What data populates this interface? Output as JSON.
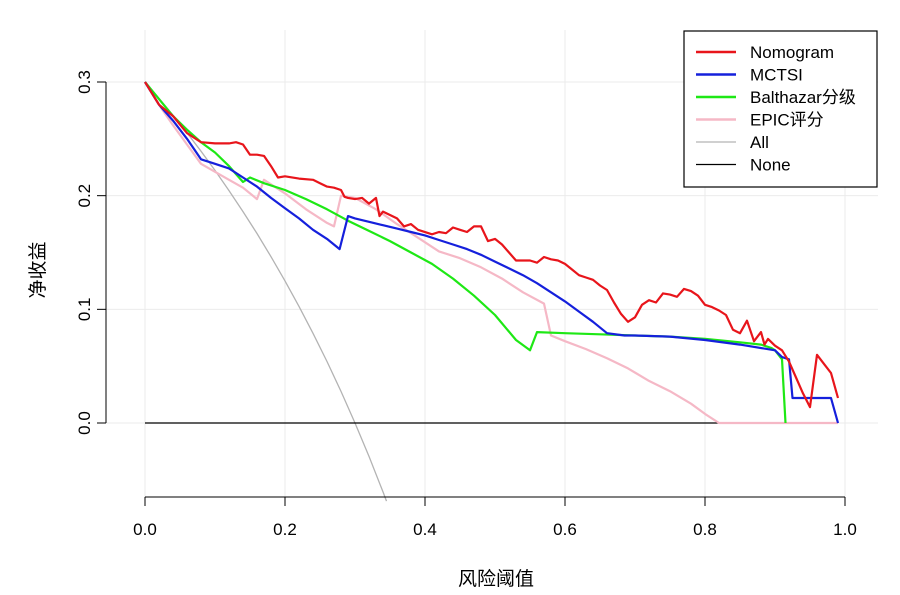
{
  "chart_data": {
    "type": "line",
    "xlabel": "风险阈值",
    "ylabel": "净收益",
    "xlim": [
      0,
      1.0
    ],
    "ylim": [
      -0.065,
      0.33
    ],
    "x_ticks": [
      "0.0",
      "0.2",
      "0.4",
      "0.6",
      "0.8",
      "1.0"
    ],
    "y_ticks": [
      "0.0",
      "0.1",
      "0.2",
      "0.3"
    ],
    "grid": true,
    "legend_position": "top-right",
    "series": [
      {
        "name": "Nomogram",
        "color": "#e8151b",
        "points": [
          [
            0.0,
            0.3
          ],
          [
            0.02,
            0.28
          ],
          [
            0.04,
            0.27
          ],
          [
            0.06,
            0.255
          ],
          [
            0.08,
            0.247
          ],
          [
            0.1,
            0.246
          ],
          [
            0.12,
            0.246
          ],
          [
            0.13,
            0.247
          ],
          [
            0.14,
            0.245
          ],
          [
            0.15,
            0.236
          ],
          [
            0.16,
            0.236
          ],
          [
            0.17,
            0.235
          ],
          [
            0.18,
            0.226
          ],
          [
            0.19,
            0.216
          ],
          [
            0.2,
            0.217
          ],
          [
            0.22,
            0.215
          ],
          [
            0.24,
            0.214
          ],
          [
            0.25,
            0.211
          ],
          [
            0.26,
            0.208
          ],
          [
            0.27,
            0.207
          ],
          [
            0.28,
            0.205
          ],
          [
            0.285,
            0.199
          ],
          [
            0.29,
            0.198
          ],
          [
            0.3,
            0.197
          ],
          [
            0.31,
            0.198
          ],
          [
            0.32,
            0.193
          ],
          [
            0.33,
            0.198
          ],
          [
            0.335,
            0.182
          ],
          [
            0.34,
            0.186
          ],
          [
            0.36,
            0.18
          ],
          [
            0.37,
            0.173
          ],
          [
            0.38,
            0.175
          ],
          [
            0.39,
            0.17
          ],
          [
            0.41,
            0.166
          ],
          [
            0.42,
            0.168
          ],
          [
            0.43,
            0.167
          ],
          [
            0.44,
            0.172
          ],
          [
            0.45,
            0.17
          ],
          [
            0.46,
            0.168
          ],
          [
            0.47,
            0.173
          ],
          [
            0.48,
            0.173
          ],
          [
            0.49,
            0.16
          ],
          [
            0.5,
            0.162
          ],
          [
            0.51,
            0.157
          ],
          [
            0.52,
            0.15
          ],
          [
            0.53,
            0.143
          ],
          [
            0.55,
            0.143
          ],
          [
            0.56,
            0.141
          ],
          [
            0.57,
            0.146
          ],
          [
            0.58,
            0.144
          ],
          [
            0.59,
            0.143
          ],
          [
            0.6,
            0.14
          ],
          [
            0.61,
            0.135
          ],
          [
            0.62,
            0.13
          ],
          [
            0.63,
            0.128
          ],
          [
            0.64,
            0.126
          ],
          [
            0.65,
            0.121
          ],
          [
            0.66,
            0.117
          ],
          [
            0.67,
            0.106
          ],
          [
            0.68,
            0.096
          ],
          [
            0.69,
            0.089
          ],
          [
            0.7,
            0.093
          ],
          [
            0.71,
            0.104
          ],
          [
            0.72,
            0.108
          ],
          [
            0.73,
            0.106
          ],
          [
            0.74,
            0.114
          ],
          [
            0.75,
            0.113
          ],
          [
            0.76,
            0.111
          ],
          [
            0.77,
            0.118
          ],
          [
            0.78,
            0.116
          ],
          [
            0.79,
            0.112
          ],
          [
            0.8,
            0.104
          ],
          [
            0.81,
            0.102
          ],
          [
            0.82,
            0.099
          ],
          [
            0.83,
            0.095
          ],
          [
            0.84,
            0.082
          ],
          [
            0.85,
            0.079
          ],
          [
            0.86,
            0.09
          ],
          [
            0.87,
            0.072
          ],
          [
            0.88,
            0.08
          ],
          [
            0.885,
            0.069
          ],
          [
            0.89,
            0.074
          ],
          [
            0.9,
            0.068
          ],
          [
            0.91,
            0.064
          ],
          [
            0.92,
            0.054
          ],
          [
            0.93,
            0.04
          ],
          [
            0.94,
            0.026
          ],
          [
            0.95,
            0.014
          ],
          [
            0.96,
            0.06
          ],
          [
            0.97,
            0.052
          ],
          [
            0.98,
            0.044
          ],
          [
            0.99,
            0.022
          ]
        ]
      },
      {
        "name": "MCTSI",
        "color": "#1520dc",
        "points": [
          [
            0.0,
            0.3
          ],
          [
            0.02,
            0.28
          ],
          [
            0.04,
            0.266
          ],
          [
            0.06,
            0.25
          ],
          [
            0.08,
            0.232
          ],
          [
            0.1,
            0.228
          ],
          [
            0.12,
            0.224
          ],
          [
            0.14,
            0.216
          ],
          [
            0.16,
            0.208
          ],
          [
            0.18,
            0.198
          ],
          [
            0.2,
            0.189
          ],
          [
            0.22,
            0.18
          ],
          [
            0.24,
            0.17
          ],
          [
            0.26,
            0.162
          ],
          [
            0.278,
            0.153
          ],
          [
            0.29,
            0.182
          ],
          [
            0.3,
            0.18
          ],
          [
            0.32,
            0.177
          ],
          [
            0.34,
            0.174
          ],
          [
            0.36,
            0.171
          ],
          [
            0.38,
            0.168
          ],
          [
            0.4,
            0.165
          ],
          [
            0.42,
            0.161
          ],
          [
            0.44,
            0.157
          ],
          [
            0.46,
            0.153
          ],
          [
            0.48,
            0.148
          ],
          [
            0.5,
            0.142
          ],
          [
            0.52,
            0.136
          ],
          [
            0.54,
            0.13
          ],
          [
            0.56,
            0.123
          ],
          [
            0.58,
            0.115
          ],
          [
            0.6,
            0.107
          ],
          [
            0.62,
            0.098
          ],
          [
            0.64,
            0.089
          ],
          [
            0.66,
            0.079
          ],
          [
            0.685,
            0.077
          ],
          [
            0.7,
            0.077
          ],
          [
            0.75,
            0.076
          ],
          [
            0.8,
            0.073
          ],
          [
            0.85,
            0.069
          ],
          [
            0.9,
            0.064
          ],
          [
            0.91,
            0.058
          ],
          [
            0.92,
            0.056
          ],
          [
            0.925,
            0.022
          ],
          [
            0.96,
            0.022
          ],
          [
            0.98,
            0.022
          ],
          [
            0.99,
            0.0
          ]
        ]
      },
      {
        "name": "Balthazar分级",
        "color": "#1ee815",
        "points": [
          [
            0.0,
            0.3
          ],
          [
            0.02,
            0.285
          ],
          [
            0.04,
            0.27
          ],
          [
            0.06,
            0.258
          ],
          [
            0.08,
            0.247
          ],
          [
            0.1,
            0.238
          ],
          [
            0.12,
            0.226
          ],
          [
            0.14,
            0.212
          ],
          [
            0.15,
            0.216
          ],
          [
            0.17,
            0.211
          ],
          [
            0.2,
            0.205
          ],
          [
            0.23,
            0.197
          ],
          [
            0.26,
            0.188
          ],
          [
            0.29,
            0.178
          ],
          [
            0.32,
            0.169
          ],
          [
            0.35,
            0.16
          ],
          [
            0.38,
            0.15
          ],
          [
            0.41,
            0.14
          ],
          [
            0.44,
            0.127
          ],
          [
            0.47,
            0.112
          ],
          [
            0.5,
            0.095
          ],
          [
            0.53,
            0.073
          ],
          [
            0.55,
            0.064
          ],
          [
            0.56,
            0.08
          ],
          [
            0.6,
            0.079
          ],
          [
            0.65,
            0.078
          ],
          [
            0.7,
            0.077
          ],
          [
            0.75,
            0.076
          ],
          [
            0.8,
            0.074
          ],
          [
            0.85,
            0.071
          ],
          [
            0.88,
            0.069
          ],
          [
            0.895,
            0.066
          ],
          [
            0.9,
            0.064
          ],
          [
            0.91,
            0.056
          ],
          [
            0.915,
            0.0
          ]
        ]
      },
      {
        "name": "EPIC评分",
        "color": "#f5b8c6",
        "points": [
          [
            0.0,
            0.3
          ],
          [
            0.02,
            0.28
          ],
          [
            0.04,
            0.262
          ],
          [
            0.06,
            0.245
          ],
          [
            0.08,
            0.228
          ],
          [
            0.1,
            0.221
          ],
          [
            0.12,
            0.214
          ],
          [
            0.14,
            0.207
          ],
          [
            0.16,
            0.197
          ],
          [
            0.17,
            0.214
          ],
          [
            0.2,
            0.202
          ],
          [
            0.23,
            0.188
          ],
          [
            0.26,
            0.176
          ],
          [
            0.27,
            0.173
          ],
          [
            0.28,
            0.2
          ],
          [
            0.3,
            0.198
          ],
          [
            0.33,
            0.188
          ],
          [
            0.36,
            0.175
          ],
          [
            0.39,
            0.163
          ],
          [
            0.42,
            0.151
          ],
          [
            0.45,
            0.145
          ],
          [
            0.48,
            0.137
          ],
          [
            0.51,
            0.127
          ],
          [
            0.54,
            0.115
          ],
          [
            0.57,
            0.105
          ],
          [
            0.58,
            0.077
          ],
          [
            0.6,
            0.072
          ],
          [
            0.63,
            0.065
          ],
          [
            0.66,
            0.057
          ],
          [
            0.69,
            0.048
          ],
          [
            0.72,
            0.037
          ],
          [
            0.75,
            0.028
          ],
          [
            0.78,
            0.017
          ],
          [
            0.8,
            0.008
          ],
          [
            0.82,
            0.0
          ],
          [
            0.85,
            0.0
          ],
          [
            0.9,
            0.0
          ],
          [
            0.95,
            0.0
          ],
          [
            0.99,
            0.0
          ]
        ]
      },
      {
        "name": "All",
        "color": "#b3b3b3",
        "points": [
          [
            0.0,
            0.3
          ],
          [
            0.02,
            0.2857
          ],
          [
            0.04,
            0.2708
          ],
          [
            0.06,
            0.2553
          ],
          [
            0.08,
            0.2391
          ],
          [
            0.1,
            0.2222
          ],
          [
            0.12,
            0.2045
          ],
          [
            0.14,
            0.186
          ],
          [
            0.16,
            0.1667
          ],
          [
            0.18,
            0.1463
          ],
          [
            0.2,
            0.125
          ],
          [
            0.22,
            0.1026
          ],
          [
            0.24,
            0.0789
          ],
          [
            0.26,
            0.0541
          ],
          [
            0.28,
            0.0278
          ],
          [
            0.3,
            0.0
          ],
          [
            0.32,
            -0.0294
          ],
          [
            0.34,
            -0.0606
          ],
          [
            0.345,
            -0.0687
          ]
        ]
      },
      {
        "name": "None",
        "color": "#000000",
        "points": [
          [
            0.0,
            0.0
          ],
          [
            0.99,
            0.0
          ]
        ]
      }
    ]
  }
}
